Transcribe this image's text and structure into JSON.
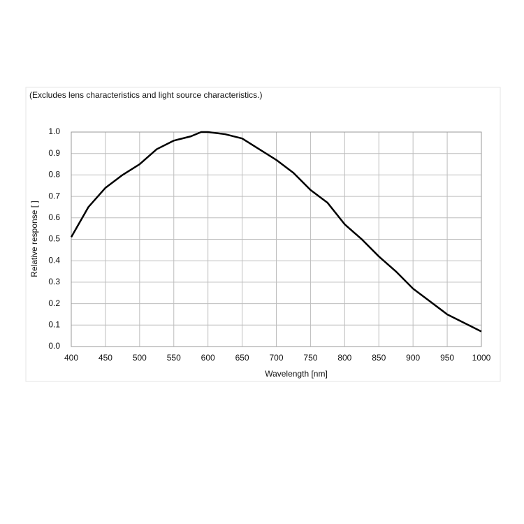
{
  "chart_data": {
    "type": "line",
    "title": "(Excludes lens characteristics and light source characteristics.)",
    "x_label": "Wavelength [nm]",
    "y_label": "Relative response [ ]",
    "x": [
      400,
      425,
      450,
      475,
      500,
      525,
      550,
      575,
      590,
      600,
      625,
      650,
      675,
      700,
      725,
      750,
      775,
      800,
      825,
      850,
      875,
      900,
      925,
      950,
      975,
      1000
    ],
    "series": [
      {
        "name": "Relative response",
        "color": "#000000",
        "values": [
          0.51,
          0.65,
          0.74,
          0.8,
          0.85,
          0.92,
          0.96,
          0.98,
          1.0,
          1.0,
          0.99,
          0.97,
          0.92,
          0.87,
          0.81,
          0.73,
          0.67,
          0.57,
          0.5,
          0.42,
          0.35,
          0.27,
          0.21,
          0.15,
          0.11,
          0.07
        ]
      }
    ],
    "xlim": [
      400,
      1000
    ],
    "xticks": [
      400,
      450,
      500,
      550,
      600,
      650,
      700,
      750,
      800,
      850,
      900,
      950,
      1000
    ],
    "ylim": [
      0,
      1
    ],
    "yticks": [
      {
        "value": 0,
        "label": "0.0"
      },
      0.1,
      0.2,
      0.3,
      0.4,
      0.5,
      0.6,
      0.7,
      0.8,
      0.9,
      {
        "value": 1,
        "label": "1.0"
      }
    ],
    "grid": true
  }
}
